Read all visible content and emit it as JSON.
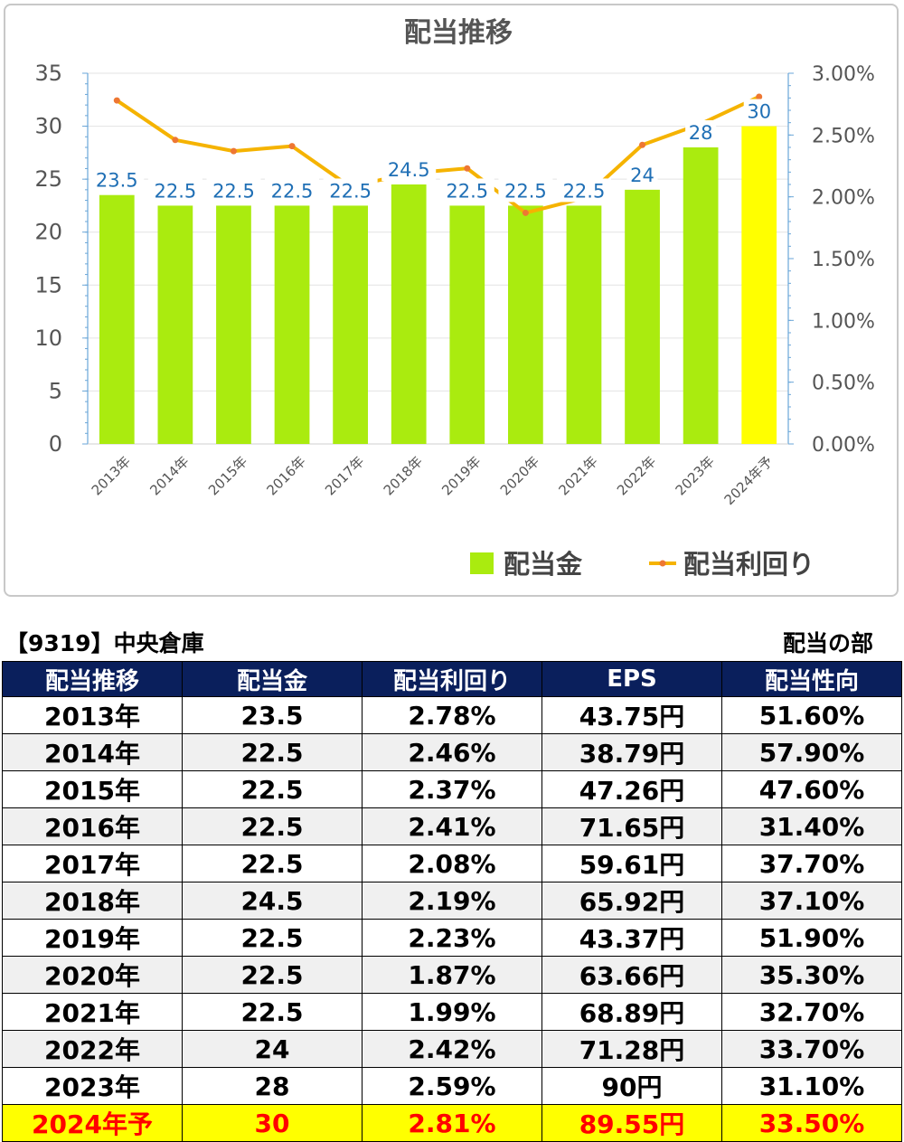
{
  "chart_data": {
    "type": "bar",
    "title": "配当推移",
    "categories": [
      "2013年",
      "2014年",
      "2015年",
      "2016年",
      "2017年",
      "2018年",
      "2019年",
      "2020年",
      "2021年",
      "2022年",
      "2023年",
      "2024年予"
    ],
    "series": [
      {
        "name": "配当金",
        "type": "bar",
        "axis": "left",
        "values": [
          23.5,
          22.5,
          22.5,
          22.5,
          22.5,
          24.5,
          22.5,
          22.5,
          22.5,
          24,
          28,
          30
        ],
        "data_labels": [
          "23.5",
          "22.5",
          "22.5",
          "22.5",
          "22.5",
          "24.5",
          "22.5",
          "22.5",
          "22.5",
          "24",
          "28",
          "30"
        ],
        "color": "#aaeb0f",
        "highlight_last_color": "#ffff00"
      },
      {
        "name": "配当利回り",
        "type": "line",
        "axis": "right",
        "values": [
          2.78,
          2.46,
          2.37,
          2.41,
          2.08,
          2.19,
          2.23,
          1.87,
          1.99,
          2.42,
          2.59,
          2.81
        ],
        "color": "#f5b300",
        "marker_color": "#ee7733"
      }
    ],
    "y_left": {
      "min": 0,
      "max": 35,
      "ticks": [
        "0",
        "5",
        "10",
        "15",
        "20",
        "25",
        "30",
        "35"
      ]
    },
    "y_right": {
      "min": 0,
      "max": 3.0,
      "ticks": [
        "0.00%",
        "0.50%",
        "1.00%",
        "1.50%",
        "2.00%",
        "2.50%",
        "3.00%"
      ]
    },
    "grid": true,
    "legend_position": "bottom-right",
    "label_color": "#1f6fb5"
  },
  "table": {
    "caption_left": "【9319】中央倉庫",
    "caption_right": "配当の部",
    "headers": [
      "配当推移",
      "配当金",
      "配当利回り",
      "EPS",
      "配当性向"
    ],
    "rows": [
      [
        "2013年",
        "23.5",
        "2.78%",
        "43.75円",
        "51.60%"
      ],
      [
        "2014年",
        "22.5",
        "2.46%",
        "38.79円",
        "57.90%"
      ],
      [
        "2015年",
        "22.5",
        "2.37%",
        "47.26円",
        "47.60%"
      ],
      [
        "2016年",
        "22.5",
        "2.41%",
        "71.65円",
        "31.40%"
      ],
      [
        "2017年",
        "22.5",
        "2.08%",
        "59.61円",
        "37.70%"
      ],
      [
        "2018年",
        "24.5",
        "2.19%",
        "65.92円",
        "37.10%"
      ],
      [
        "2019年",
        "22.5",
        "2.23%",
        "43.37円",
        "51.90%"
      ],
      [
        "2020年",
        "22.5",
        "1.87%",
        "63.66円",
        "35.30%"
      ],
      [
        "2021年",
        "22.5",
        "1.99%",
        "68.89円",
        "32.70%"
      ],
      [
        "2022年",
        "24",
        "2.42%",
        "71.28円",
        "33.70%"
      ],
      [
        "2023年",
        "28",
        "2.59%",
        "90円",
        "31.10%"
      ],
      [
        "2024年予",
        "30",
        "2.81%",
        "89.55円",
        "33.50%"
      ]
    ],
    "header_bg": "#0a1f5c",
    "forecast_bg": "#ffff00",
    "forecast_text": "#ff0000"
  }
}
